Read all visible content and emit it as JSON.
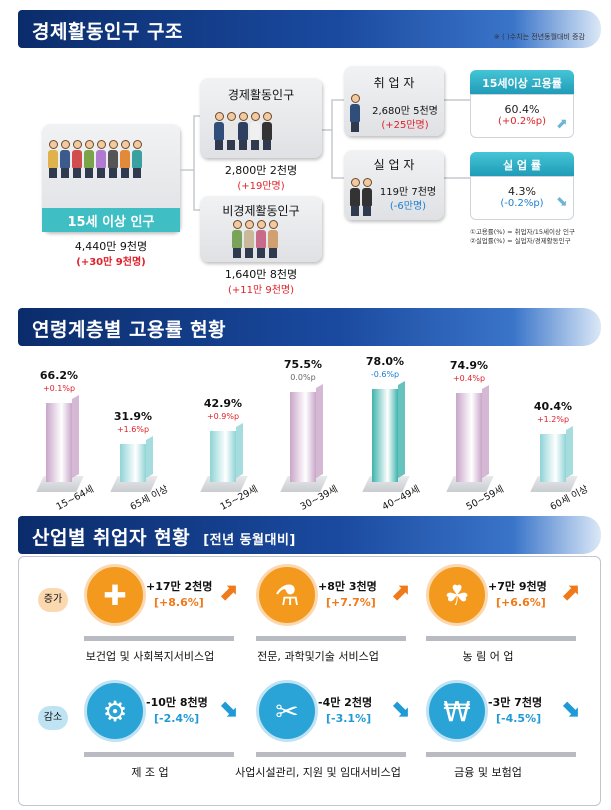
{
  "section1": {
    "title": "경제활동인구 구조",
    "note": "※ ( )수치는 전년동월대비 증감",
    "pop15": {
      "label": "15세 이상 인구",
      "value": "4,440만 9천명",
      "change": "(+30만 9천명)"
    },
    "active": {
      "label": "경제활동인구",
      "value": "2,800만 2천명",
      "change": "(+19만명)"
    },
    "inactive": {
      "label": "비경제활동인구",
      "value": "1,640만 8천명",
      "change": "(+11만 9천명)"
    },
    "employed": {
      "label": "취 업 자",
      "value": "2,680만 5천명",
      "change": "(+25만명)"
    },
    "unemployed": {
      "label": "실 업 자",
      "value": "119만 7천명",
      "change": "(-6만명)"
    },
    "emp_rate": {
      "label": "15세이상 고용률",
      "value": "60.4%",
      "change": "(+0.2%p)"
    },
    "unemp_rate": {
      "label": "실 업 률",
      "value": "4.3%",
      "change": "(-0.2%p)"
    },
    "formula1": "①고용률(%) = 취업자/15세이상 인구",
    "formula2": "②실업률(%) = 실업자/경제활동인구"
  },
  "section2": {
    "title": "연령계층별 고용률 현황"
  },
  "chart_data": {
    "type": "bar",
    "title": "연령계층별 고용률 현황",
    "categories": [
      "15~64세",
      "65세 이상",
      "15~29세",
      "30~39세",
      "40~49세",
      "50~59세",
      "60세 이상"
    ],
    "values": [
      66.2,
      31.9,
      42.9,
      75.5,
      78.0,
      74.9,
      40.4
    ],
    "value_labels": [
      "66.2%",
      "31.9%",
      "42.9%",
      "75.5%",
      "78.0%",
      "74.9%",
      "40.4%"
    ],
    "changes": [
      "+0.1%p",
      "+1.6%p",
      "+0.9%p",
      "0.0%p",
      "-0.6%p",
      "+0.4%p",
      "+1.2%p"
    ],
    "colors": [
      "#c9a6c9",
      "#8fd3d6",
      "#8fd3d6",
      "#c9a6c9",
      "#3fb3ad",
      "#c9a6c9",
      "#8fd3d6"
    ],
    "ylim": [
      0,
      100
    ]
  },
  "section3": {
    "title": "산업별 취업자 현황",
    "subtitle": "[전년 동월대비]",
    "increase_label": "증가",
    "decrease_label": "감소",
    "increase": [
      {
        "amount": "+17만 2천명",
        "pct": "[+8.6%]",
        "name": "보건업 및 사회복지서비스업",
        "icon": "medical-kit-heart-icon"
      },
      {
        "amount": "+8만 3천명",
        "pct": "[+7.7%]",
        "name": "전문, 과학및기술 서비스업",
        "icon": "test-tubes-icon"
      },
      {
        "amount": "+7만 9천명",
        "pct": "[+6.6%]",
        "name": "농 림 어 업",
        "icon": "farmer-icon"
      }
    ],
    "decrease": [
      {
        "amount": "-10만 8천명",
        "pct": "[-2.4%]",
        "name": "제 조 업",
        "icon": "factory-gear-icon"
      },
      {
        "amount": "-4만 2천명",
        "pct": "[-3.1%]",
        "name": "사업시설관리, 지원 및 임대서비스업",
        "icon": "tools-people-icon"
      },
      {
        "amount": "-3만 7천명",
        "pct": "[-4.5%]",
        "name": "금융 및 보험업",
        "icon": "money-bills-icon"
      }
    ],
    "colors": {
      "increase": "#f39a1e",
      "decrease": "#2aa3d6",
      "up_arrow": "#f07a1a",
      "down_arrow": "#1f9ad6"
    }
  }
}
